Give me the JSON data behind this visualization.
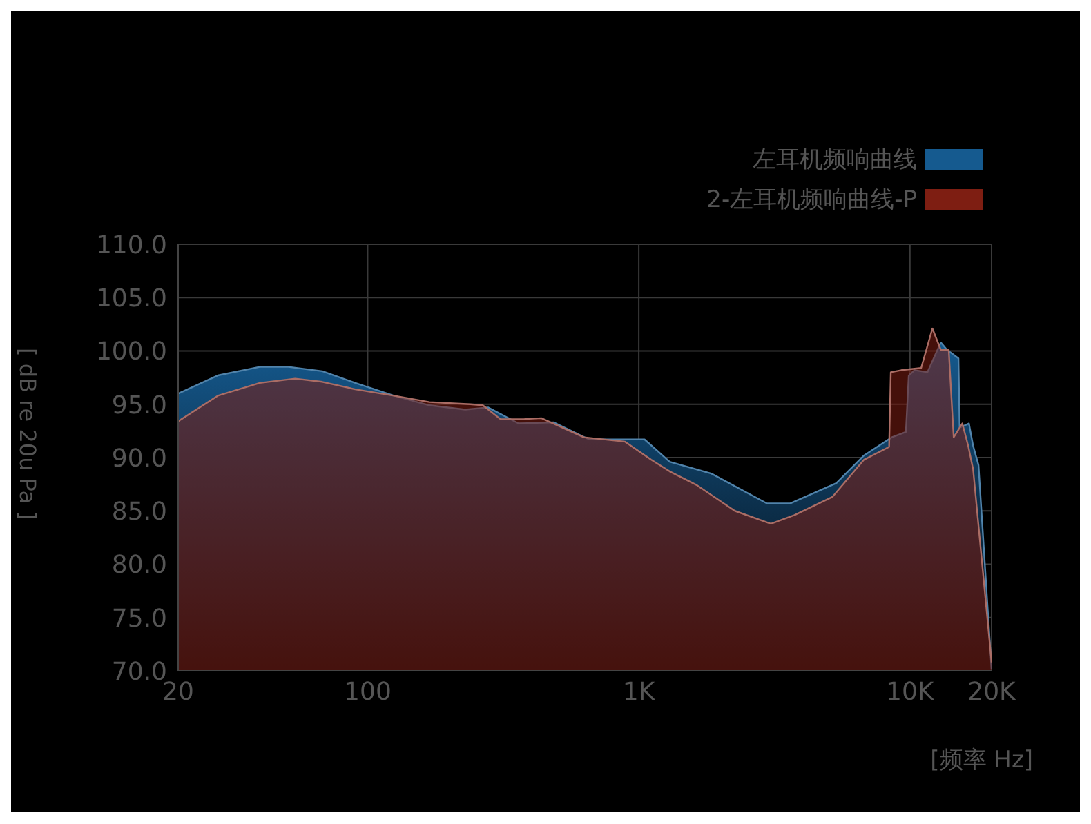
{
  "chart_data": {
    "type": "area",
    "xlabel": "[频率 Hz]",
    "ylabel": "[ dB re 20u Pa ]",
    "log": "x",
    "grid": true,
    "legend": "top right",
    "xlim": [
      20,
      20000
    ],
    "xticks": [
      20,
      100,
      {
        "value": 1000,
        "label": "1K"
      },
      {
        "value": 10000,
        "label": "10K"
      },
      {
        "value": 20000,
        "label": "20K"
      }
    ],
    "ylim": [
      70,
      110
    ],
    "yticks": [
      {
        "value": 70,
        "label": "70.0"
      },
      {
        "value": 75,
        "label": "75.0"
      },
      {
        "value": 80,
        "label": "80.0"
      },
      {
        "value": 85,
        "label": "85.0"
      },
      {
        "value": 90,
        "label": "90.0"
      },
      {
        "value": 95,
        "label": "95.0"
      },
      {
        "value": 100,
        "label": "100.0"
      },
      {
        "value": 105,
        "label": "105.0"
      },
      {
        "value": 110,
        "label": "110.0"
      }
    ],
    "series": [
      {
        "name": "左耳机频响曲线",
        "color": "#155a8f",
        "x": [
          20,
          28,
          40,
          51,
          68,
          90,
          125,
          169,
          229,
          278,
          360,
          486,
          656,
          1050,
          1300,
          1850,
          2970,
          3620,
          5350,
          6770,
          8570,
          9660,
          9900,
          10400,
          11600,
          13000,
          13700,
          15100,
          15250,
          16500,
          17100,
          17900,
          20000
        ],
        "values": [
          96.0,
          97.7,
          98.5,
          98.5,
          98.1,
          97.0,
          95.8,
          94.9,
          94.5,
          94.7,
          93.2,
          93.3,
          91.7,
          91.7,
          89.6,
          88.5,
          85.7,
          85.7,
          87.6,
          90.2,
          91.9,
          92.4,
          97.7,
          98.2,
          98.0,
          100.8,
          100.1,
          99.3,
          92.8,
          93.2,
          91.1,
          89.3,
          70.1
        ]
      },
      {
        "name": "2-左耳机频响曲线-P",
        "color": "#7e1e12",
        "x": [
          20,
          28,
          40,
          54,
          68,
          90,
          125,
          169,
          239,
          266,
          309,
          376,
          437,
          627,
          887,
          1110,
          1300,
          1640,
          2260,
          3070,
          3750,
          5170,
          6770,
          8380,
          8500,
          9310,
          11000,
          12100,
          13000,
          13900,
          14500,
          15600,
          16400,
          17100,
          20000
        ],
        "values": [
          93.4,
          95.8,
          97.0,
          97.4,
          97.1,
          96.4,
          95.8,
          95.2,
          95.0,
          94.9,
          93.6,
          93.6,
          93.7,
          91.9,
          91.5,
          89.8,
          88.7,
          87.4,
          85.0,
          83.8,
          84.6,
          86.3,
          89.8,
          91.0,
          98.0,
          98.2,
          98.4,
          102.1,
          100.1,
          100.1,
          91.9,
          93.2,
          91.1,
          88.9,
          70.8
        ]
      }
    ]
  }
}
